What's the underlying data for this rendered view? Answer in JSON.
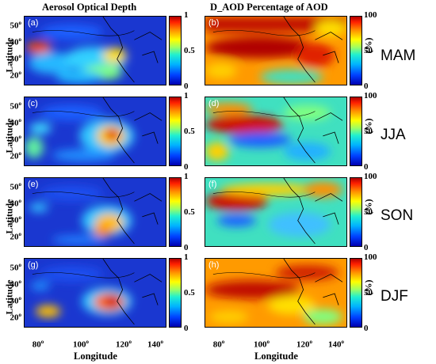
{
  "titles": {
    "left": "Aerosol Optical Depth",
    "right": "D_AOD Percentage of AOD"
  },
  "axes": {
    "y_label": "Latitude",
    "x_label": "Longitude",
    "y_ticks": [
      "50",
      "40",
      "30",
      "20"
    ],
    "x_ticks": [
      "80",
      "100",
      "120",
      "140"
    ],
    "degree_symbol": "o"
  },
  "colorbars": {
    "aod_ticks": [
      "1",
      "0.5",
      "0"
    ],
    "pct_ticks": [
      "100",
      "50",
      "0"
    ],
    "pct_unit": "(%)"
  },
  "seasons": [
    "MAM",
    "JJA",
    "SON",
    "DJF"
  ],
  "panel_labels": [
    "(a)",
    "(b)",
    "(c)",
    "(d)",
    "(e)",
    "(f)",
    "(g)",
    "(h)"
  ],
  "colors": {
    "low": "#0000b0",
    "mid": "#a0ff60",
    "high": "#b00000",
    "coast": "#000000"
  }
}
